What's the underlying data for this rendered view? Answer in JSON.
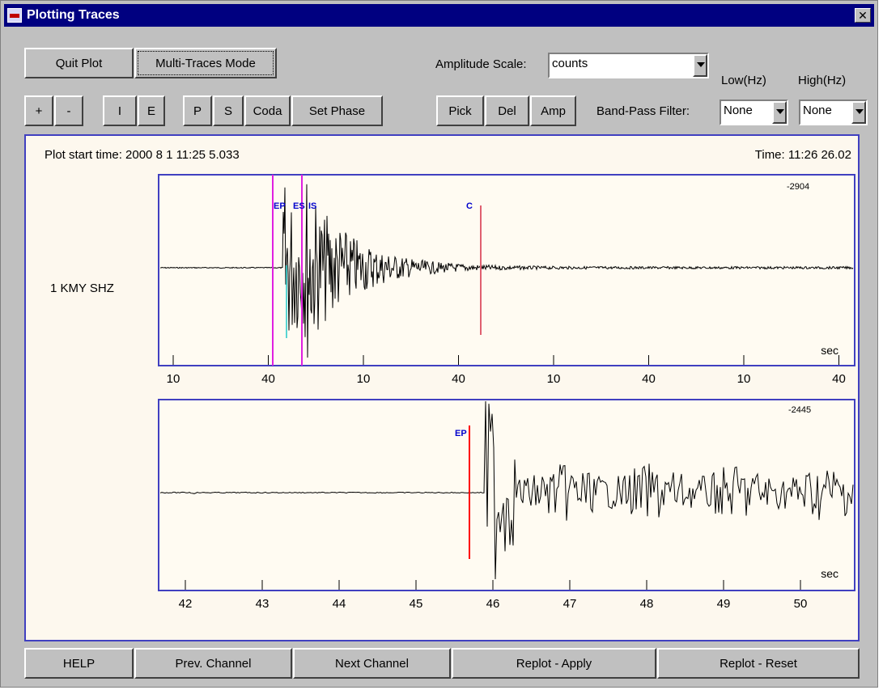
{
  "window": {
    "title": "Plotting Traces",
    "close_glyph": "✕"
  },
  "toolbar": {
    "quit_plot": "Quit Plot",
    "multi_traces": "Multi-Traces Mode",
    "amplitude_scale_label": "Amplitude Scale:",
    "amplitude_scale_value": "counts",
    "low_hz": "Low(Hz)",
    "high_hz": "High(Hz)",
    "plus": "+",
    "minus": "-",
    "i": "I",
    "e": "E",
    "p": "P",
    "s": "S",
    "coda": "Coda",
    "set_phase": "Set Phase",
    "pick": "Pick",
    "del": "Del",
    "amp": "Amp",
    "band_pass_label": "Band-Pass Filter:",
    "low_value": "None",
    "high_value": "None"
  },
  "plot": {
    "start_time": "Plot start time: 2000 8 1  11:25 5.033",
    "cursor_time": "Time: 11:26  26.02",
    "trace_label": "1  KMY  SHZ",
    "top": {
      "amplitude": "-2904",
      "unit": "sec",
      "tick_labels": [
        "10",
        "40",
        "10",
        "40",
        "10",
        "40",
        "10",
        "40"
      ],
      "phases": [
        "EP",
        "ES",
        "IS",
        "C"
      ]
    },
    "bottom": {
      "amplitude": "-2445",
      "unit": "sec",
      "tick_labels": [
        "42",
        "43",
        "44",
        "45",
        "46",
        "47",
        "48",
        "49",
        "50"
      ],
      "phases": [
        "EP"
      ]
    }
  },
  "footer": {
    "help": "HELP",
    "prev": "Prev. Channel",
    "next": "Next Channel",
    "replot_apply": "Replot - Apply",
    "replot_reset": "Replot -  Reset"
  },
  "colors": {
    "titlebar": "#000080",
    "panel_border": "#4040c0",
    "phase_label": "#0000cc",
    "ep_line": "#e020e0",
    "c_line": "#e06070",
    "ep_zoom_line": "#ff0000"
  }
}
